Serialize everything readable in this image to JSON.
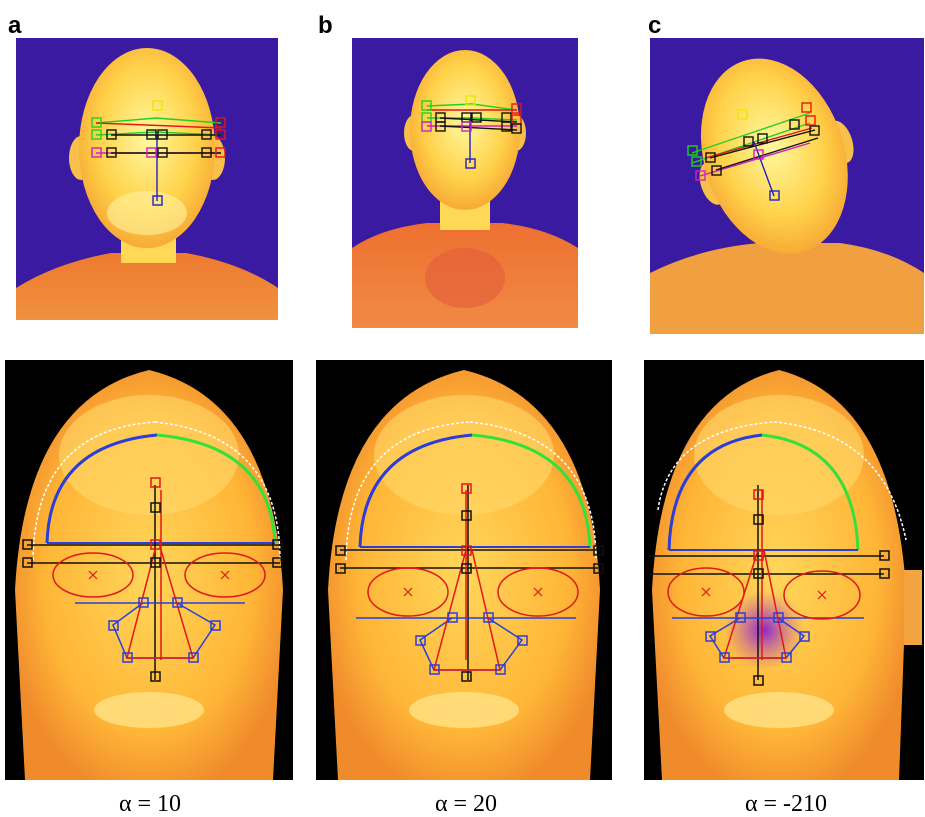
{
  "figure": {
    "panels": [
      {
        "letter": "a",
        "caption": "α = 10"
      },
      {
        "letter": "b",
        "caption": "α = 20"
      },
      {
        "letter": "c",
        "caption": "α = -210"
      }
    ]
  },
  "colors": {
    "thermal_bg": "#3a1aa0",
    "skin_hot": "#fff27a",
    "skin_warm": "#ffc642",
    "skin_mid": "#f39a2f",
    "shirt": "#e8632a",
    "black_bg": "#000000",
    "marker_black": "#111111",
    "marker_red": "#e01818",
    "marker_green": "#22d022",
    "marker_yellow": "#e8e800",
    "marker_magenta": "#d020c0",
    "marker_blue": "#2020c8",
    "marker_white": "#ffffff"
  }
}
